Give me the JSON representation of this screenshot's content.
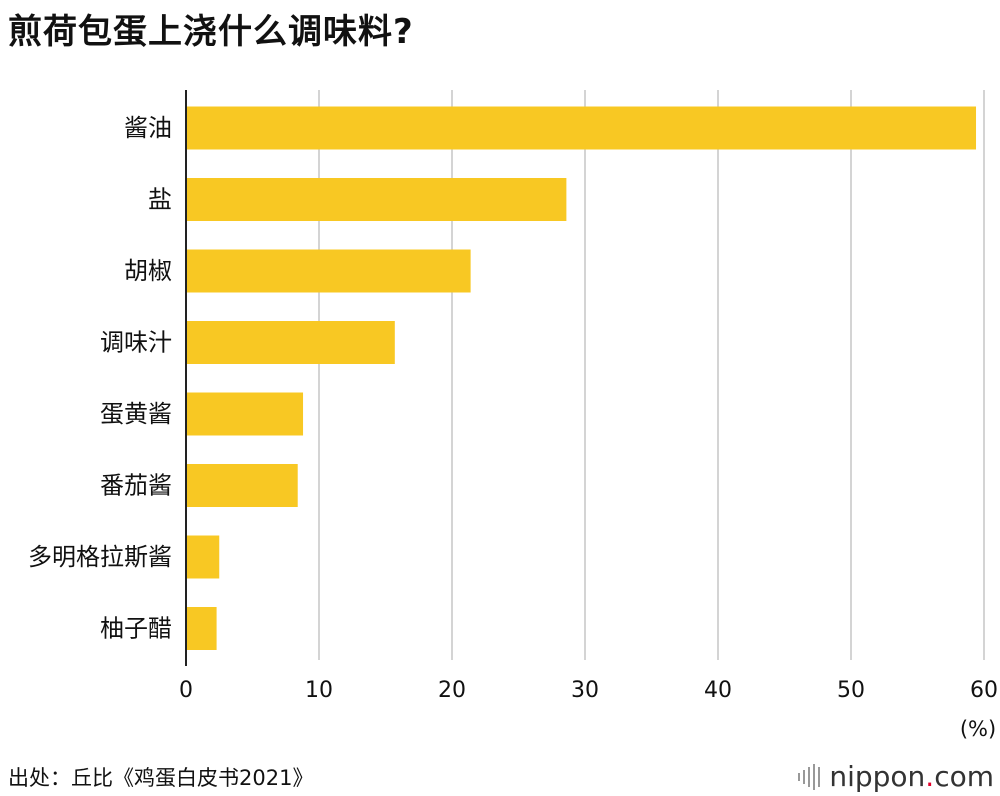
{
  "title": "煎荷包蛋上浇什么调味料?",
  "source": "出处：丘比《鸡蛋白皮书2021》",
  "logo": {
    "name": "nippon",
    "dot": ".",
    "suffix": "com",
    "icon": "sound-bars-icon"
  },
  "colors": {
    "bar": "#F8C823",
    "grid": "#d4d4d4",
    "axis": "#222222",
    "logo_dot": "#e4002b"
  },
  "chart_data": {
    "type": "bar",
    "orientation": "horizontal",
    "title": "煎荷包蛋上浇什么调味料?",
    "categories": [
      "酱油",
      "盐",
      "胡椒",
      "调味汁",
      "蛋黄酱",
      "番茄酱",
      "多明格拉斯酱",
      "柚子醋"
    ],
    "values": [
      59.4,
      28.6,
      21.4,
      15.7,
      8.8,
      8.4,
      2.5,
      2.3
    ],
    "xlim": [
      0,
      60
    ],
    "xticks": [
      "0",
      "10",
      "20",
      "30",
      "40",
      "50",
      "60"
    ],
    "xlabel": "(%)",
    "grid": true
  }
}
